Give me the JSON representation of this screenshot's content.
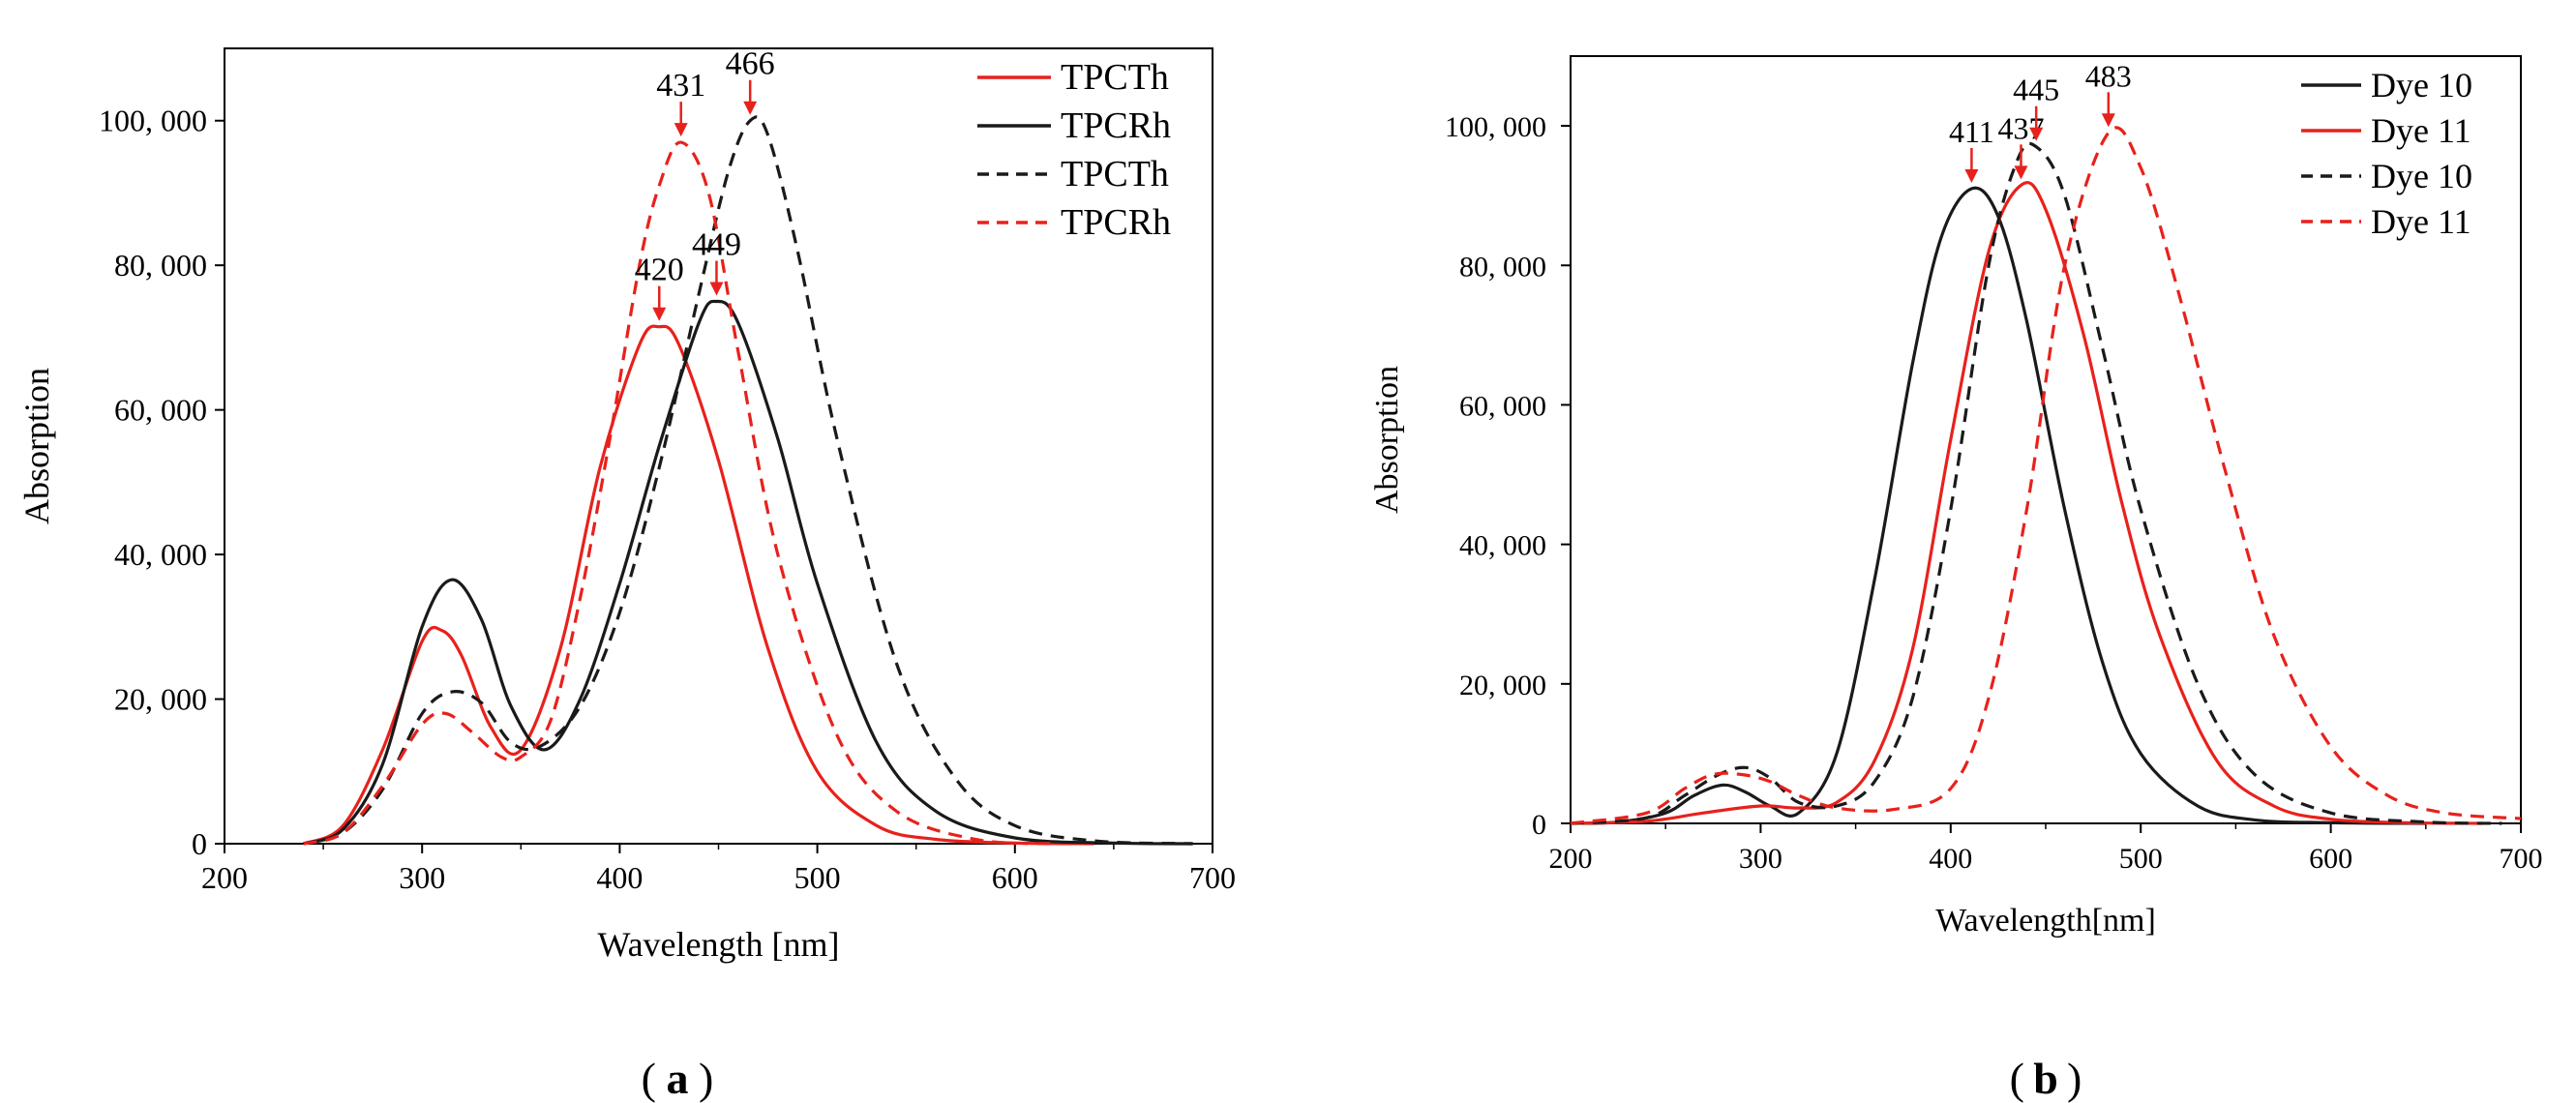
{
  "figure": {
    "panel_a_caption": "a",
    "panel_b_caption": "b"
  },
  "chart_data": [
    {
      "type": "line",
      "panel": "a",
      "xlabel": "Wavelength [nm]",
      "ylabel": "Absorption",
      "xlim": [
        200,
        700
      ],
      "ylim": [
        0,
        110000
      ],
      "xticks": [
        200,
        300,
        400,
        500,
        600,
        700
      ],
      "xtick_labels": [
        "200",
        "300",
        "400",
        "500",
        "600",
        "700"
      ],
      "yticks": [
        0,
        20000,
        40000,
        60000,
        80000,
        100000
      ],
      "ytick_labels": [
        "0",
        "20, 000",
        "40, 000",
        "60, 000",
        "80, 000",
        "100, 000"
      ],
      "grid": false,
      "legend_position": "top-right",
      "series": [
        {
          "name": "TPCTh",
          "color": "#e8211c",
          "dash": "solid",
          "x": [
            240,
            260,
            280,
            300,
            310,
            320,
            335,
            350,
            370,
            390,
            410,
            420,
            430,
            450,
            475,
            500,
            530,
            560,
            600,
            640
          ],
          "y": [
            0,
            2500,
            13000,
            28000,
            29500,
            26000,
            16000,
            13000,
            27000,
            52000,
            69000,
            71500,
            69000,
            53000,
            27000,
            10000,
            2500,
            600,
            100,
            0
          ]
        },
        {
          "name": "TPCRh",
          "color": "#1a1a1a",
          "dash": "solid",
          "x": [
            240,
            260,
            280,
            300,
            315,
            330,
            345,
            362,
            380,
            400,
            420,
            440,
            449,
            460,
            480,
            500,
            530,
            560,
            600,
            650,
            690
          ],
          "y": [
            0,
            2000,
            11000,
            30000,
            36500,
            31000,
            19000,
            13000,
            20000,
            36000,
            55000,
            72000,
            75000,
            72000,
            56000,
            36000,
            14000,
            4500,
            800,
            100,
            0
          ]
        },
        {
          "name": "TPCTh",
          "color": "#1a1a1a",
          "dash": "dashed",
          "x": [
            240,
            260,
            280,
            300,
            315,
            330,
            345,
            360,
            380,
            400,
            420,
            440,
            455,
            466,
            475,
            490,
            510,
            540,
            570,
            600,
            640,
            690
          ],
          "y": [
            0,
            1500,
            7500,
            18000,
            21000,
            19500,
            14000,
            13500,
            19000,
            32000,
            52000,
            76000,
            93000,
            100000,
            98000,
            82000,
            56000,
            25000,
            9000,
            2500,
            400,
            0
          ]
        },
        {
          "name": "TPCRh",
          "color": "#e8211c",
          "dash": "dashed",
          "x": [
            240,
            260,
            280,
            300,
            312,
            325,
            340,
            350,
            365,
            380,
            395,
            410,
            420,
            431,
            445,
            460,
            480,
            510,
            540,
            580,
            620
          ],
          "y": [
            0,
            1500,
            8000,
            16500,
            18000,
            15500,
            12000,
            12000,
            17000,
            34000,
            56000,
            80000,
            91000,
            97000,
            90000,
            68000,
            40000,
            15000,
            4500,
            600,
            0
          ]
        }
      ],
      "annotations": [
        {
          "text": "431",
          "x": 431,
          "y": 97000,
          "color": "#e8211c"
        },
        {
          "text": "466",
          "x": 466,
          "y": 100000,
          "color": "#e8211c"
        },
        {
          "text": "420",
          "x": 420,
          "y": 71500,
          "color": "#e8211c"
        },
        {
          "text": "449",
          "x": 449,
          "y": 75000,
          "color": "#e8211c"
        }
      ]
    },
    {
      "type": "line",
      "panel": "b",
      "xlabel": "Wavelength[nm]",
      "ylabel": "Absorption",
      "xlim": [
        200,
        700
      ],
      "ylim": [
        0,
        110000
      ],
      "xticks": [
        200,
        300,
        400,
        500,
        600,
        700
      ],
      "xtick_labels": [
        "200",
        "300",
        "400",
        "500",
        "600",
        "700"
      ],
      "yticks": [
        0,
        20000,
        40000,
        60000,
        80000,
        100000
      ],
      "ytick_labels": [
        "0",
        "20, 000",
        "40, 000",
        "60, 000",
        "80, 000",
        "100, 000"
      ],
      "grid": false,
      "legend_position": "top-right",
      "series": [
        {
          "name": "Dye 10",
          "color": "#1a1a1a",
          "dash": "solid",
          "x": [
            200,
            225,
            250,
            265,
            280,
            292,
            305,
            320,
            340,
            360,
            380,
            395,
            411,
            425,
            440,
            460,
            480,
            500,
            530,
            560,
            600,
            650
          ],
          "y": [
            0,
            200,
            1500,
            4000,
            5500,
            4500,
            2500,
            1500,
            10000,
            35000,
            66000,
            84000,
            91000,
            87000,
            72000,
            45000,
            23000,
            10000,
            2500,
            500,
            100,
            0
          ]
        },
        {
          "name": "Dye 11",
          "color": "#e8211c",
          "dash": "solid",
          "x": [
            200,
            240,
            270,
            300,
            320,
            340,
            360,
            380,
            400,
            420,
            437,
            450,
            470,
            490,
            510,
            540,
            570,
            600,
            640,
            680
          ],
          "y": [
            0,
            300,
            1500,
            2500,
            2200,
            3000,
            9000,
            25000,
            55000,
            82000,
            91500,
            88000,
            70000,
            46000,
            27000,
            9000,
            2500,
            600,
            100,
            0
          ]
        },
        {
          "name": "Dye 10",
          "color": "#1a1a1a",
          "dash": "dashed",
          "x": [
            200,
            240,
            260,
            278,
            292,
            305,
            320,
            340,
            360,
            380,
            400,
            420,
            435,
            445,
            460,
            480,
            500,
            530,
            560,
            600,
            650,
            690
          ],
          "y": [
            0,
            800,
            4000,
            7000,
            8000,
            6500,
            3000,
            2500,
            6000,
            18000,
            45000,
            80000,
            95000,
            97000,
            90000,
            68000,
            45000,
            20000,
            7000,
            1500,
            200,
            0
          ]
        },
        {
          "name": "Dye 11",
          "color": "#e8211c",
          "dash": "dashed",
          "x": [
            200,
            240,
            260,
            275,
            290,
            305,
            320,
            340,
            370,
            400,
            420,
            440,
            460,
            483,
            500,
            520,
            545,
            570,
            600,
            630,
            660,
            700
          ],
          "y": [
            0,
            1500,
            5000,
            7000,
            7000,
            6000,
            4000,
            2200,
            2000,
            5000,
            18000,
            45000,
            80000,
            99000,
            94000,
            76000,
            50000,
            27000,
            11000,
            4000,
            1500,
            700
          ]
        }
      ],
      "annotations": [
        {
          "text": "411",
          "x": 411,
          "y": 91000,
          "color": "#e8211c"
        },
        {
          "text": "437",
          "x": 437,
          "y": 91500,
          "color": "#e8211c"
        },
        {
          "text": "445",
          "x": 445,
          "y": 97000,
          "color": "#e8211c"
        },
        {
          "text": "483",
          "x": 483,
          "y": 99000,
          "color": "#e8211c"
        }
      ]
    }
  ]
}
